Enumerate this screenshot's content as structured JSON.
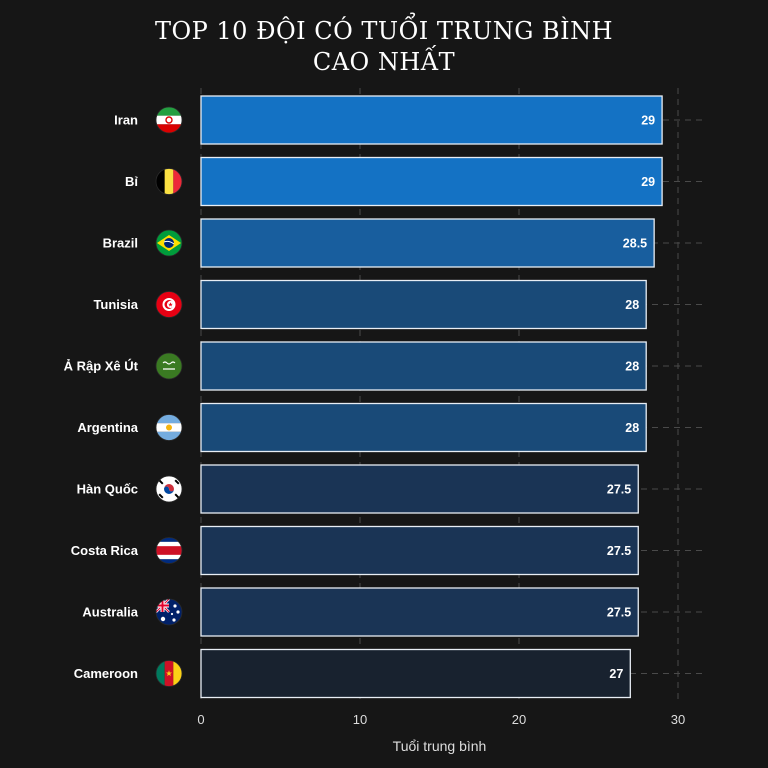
{
  "chart_data": {
    "type": "bar",
    "orientation": "horizontal",
    "title_lines": [
      "TOP 10 ĐỘI CÓ TUỔI TRUNG BÌNH",
      "CAO NHẤT"
    ],
    "xlabel": "Tuổi trung bình",
    "ylabel": "",
    "xlim": [
      0,
      30
    ],
    "xticks": [
      0,
      10,
      20,
      30
    ],
    "grid": true,
    "categories": [
      "Iran",
      "Bỉ",
      "Brazil",
      "Tunisia",
      "Ả Rập Xê Út",
      "Argentina",
      "Hàn Quốc",
      "Costa Rica",
      "Australia",
      "Cameroon"
    ],
    "values": [
      29,
      29,
      28.5,
      28,
      28,
      28,
      27.5,
      27.5,
      27.5,
      27
    ],
    "value_labels": [
      "29",
      "29",
      "28.5",
      "28",
      "28",
      "28",
      "27.5",
      "27.5",
      "27.5",
      "27"
    ],
    "bar_colors": [
      "#1472c4",
      "#1472c4",
      "#185e9e",
      "#194a78",
      "#194a78",
      "#194a78",
      "#1a3455",
      "#1a3455",
      "#1a3455",
      "#18222f"
    ],
    "bar_outline_color": "#e8eef5",
    "flag_icons": [
      "iran-flag-icon",
      "belgium-flag-icon",
      "brazil-flag-icon",
      "tunisia-flag-icon",
      "saudi-arabia-flag-icon",
      "argentina-flag-icon",
      "south-korea-flag-icon",
      "costa-rica-flag-icon",
      "australia-flag-icon",
      "cameroon-flag-icon"
    ]
  }
}
